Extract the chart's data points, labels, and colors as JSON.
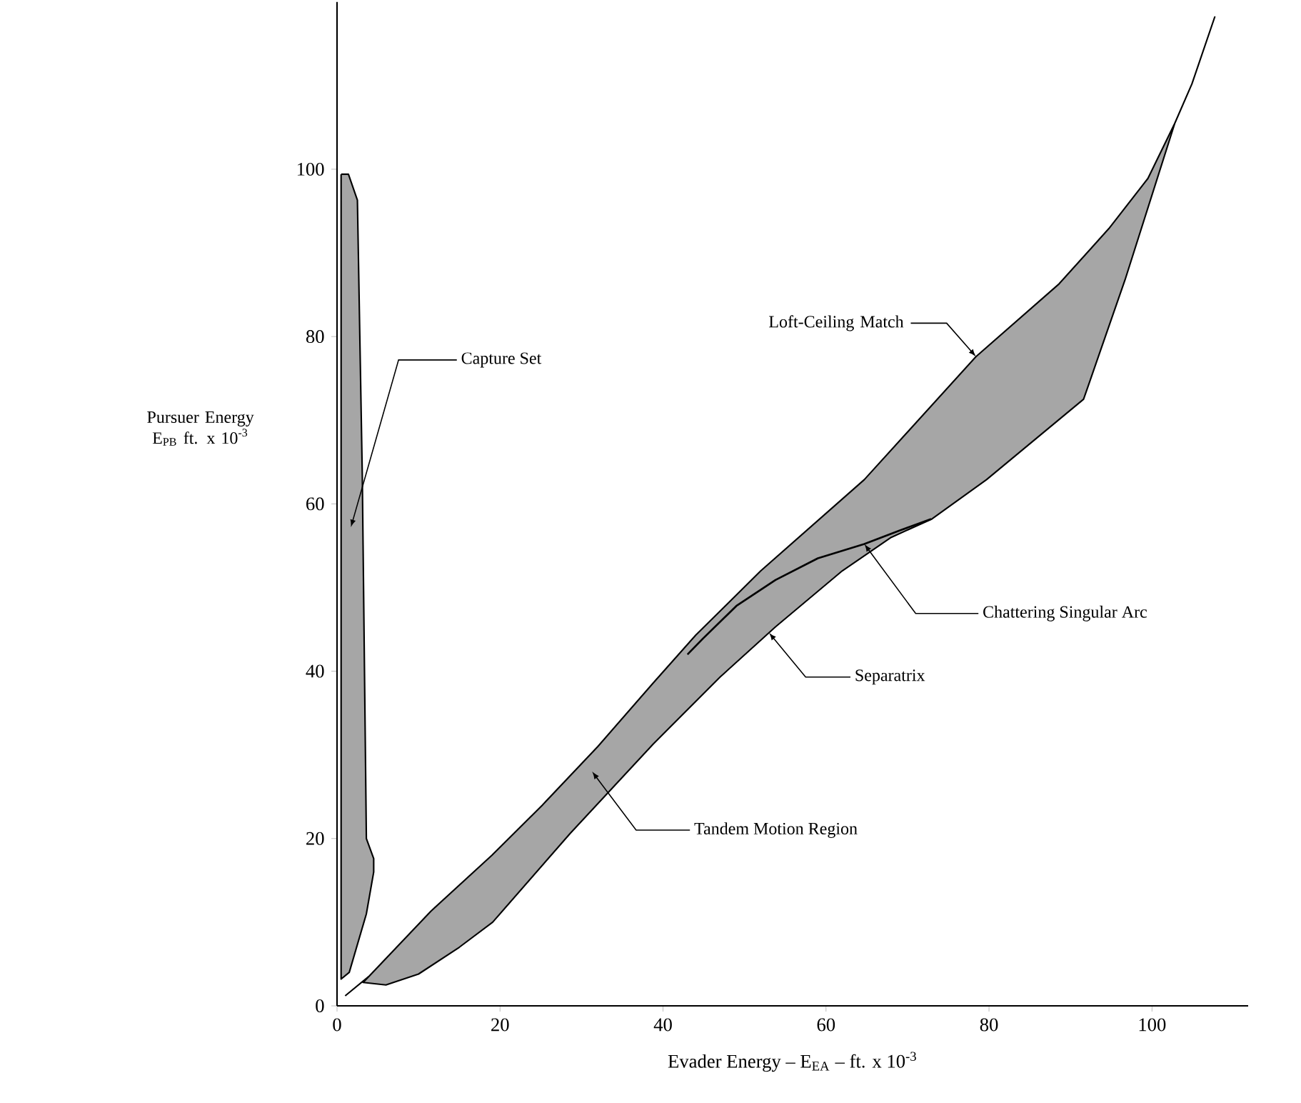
{
  "chart_data": {
    "type": "area",
    "xlabel": "Evader Energy – E$_{EA}$ – ft. x 10$^{-3}$",
    "ylabel": "Pursuer Energy E$_{PB}$ ft. x 10$^{-3}$",
    "xlim": [
      0,
      111.8
    ],
    "ylim": [
      0,
      120
    ],
    "xticks": [
      0,
      20,
      40,
      60,
      80,
      100
    ],
    "yticks": [
      0,
      20,
      40,
      60,
      80,
      100
    ],
    "grid": false,
    "series": [
      {
        "color": "#000000",
        "x": [
          0.5,
          1.4,
          2.5,
          3.1,
          3.6,
          4.5,
          4.5,
          3.6,
          1.5,
          0.5,
          0.5
        ],
        "values": [
          99.4,
          99.4,
          96.3,
          63.4,
          20,
          17.6,
          16,
          11,
          4,
          3.2,
          99.4
        ]
      },
      {
        "color": "#000000",
        "x": [
          1,
          4,
          11.5,
          19,
          25.2,
          32,
          38.8,
          44,
          52,
          64.7,
          78.4,
          88.6,
          94.7,
          99.5,
          102.8,
          104.9,
          107.7,
          104.9,
          102.8,
          96.7,
          91.6,
          79.7,
          73,
          68,
          62,
          53.8,
          47,
          38.8,
          28.6,
          19.1,
          15,
          10,
          6,
          3.2,
          4
        ],
        "values": [
          1.2,
          3.6,
          11.3,
          18,
          24,
          31,
          38.6,
          44.3,
          52,
          62.9,
          77.6,
          86.3,
          92.9,
          98.9,
          105.5,
          110.2,
          118.2,
          110.2,
          105.5,
          86.8,
          72.5,
          62.9,
          58.2,
          56,
          52,
          45.3,
          39.3,
          31.3,
          20.6,
          10,
          7,
          3.8,
          2.5,
          2.8,
          3.6
        ]
      },
      {
        "type": "line",
        "color": "#000000",
        "x": [
          43,
          44.9,
          49,
          53.8,
          59,
          64.7,
          69,
          72.9
        ],
        "values": [
          42,
          43.9,
          47.8,
          50.9,
          53.5,
          55.2,
          56.8,
          58.2
        ]
      }
    ],
    "annotations": [
      "Capture Set",
      {
        "text": "Loft-Ceiling Match",
        "x": 78.4,
        "y": 77.6
      },
      {
        "text": "Chattering Singular Arc",
        "x": 64.7,
        "y": 55.2
      },
      {
        "text": "Separatrix",
        "x": 53,
        "y": 44.6
      },
      "Tandem Motion Region"
    ]
  }
}
